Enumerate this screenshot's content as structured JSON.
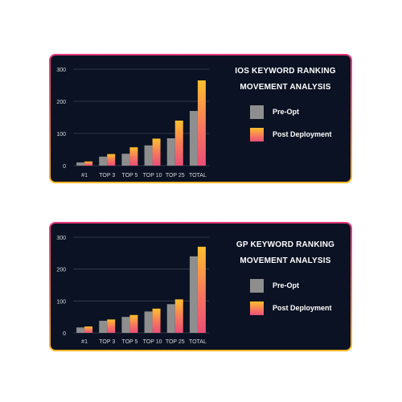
{
  "colors": {
    "card_background": "#0a1223",
    "pre_opt": "#8e8e8e",
    "post_top": "#fdbf2d",
    "post_bottom": "#ea4f77",
    "border_top": "#e8387c",
    "border_bottom": "#fdb927"
  },
  "charts": [
    {
      "title_line1": "IOS KEYWORD RANKING",
      "title_line2": "MOVEMENT ANALYSIS",
      "legend": [
        "Pre-Opt",
        "Post Deployment"
      ]
    },
    {
      "title_line1": "GP KEYWORD RANKING",
      "title_line2": "MOVEMENT ANALYSIS",
      "legend": [
        "Pre-Opt",
        "Post Deployment"
      ]
    }
  ],
  "chart_data": [
    {
      "type": "bar",
      "categories": [
        "#1",
        "TOP 3",
        "TOP 5",
        "TOP 10",
        "TOP 25",
        "TOTAL"
      ],
      "series": [
        {
          "name": "Pre-Opt",
          "values": [
            10,
            28,
            37,
            63,
            85,
            170
          ]
        },
        {
          "name": "Post Deployment",
          "values": [
            13,
            36,
            57,
            84,
            140,
            265
          ]
        }
      ],
      "yticks": [
        0,
        100,
        200,
        300
      ],
      "ylim": [
        0,
        300
      ],
      "grid": true,
      "legend_position": "right"
    },
    {
      "type": "bar",
      "categories": [
        "#1",
        "TOP 3",
        "TOP 5",
        "TOP 10",
        "TOP 25",
        "TOTAL"
      ],
      "series": [
        {
          "name": "Pre-Opt",
          "values": [
            17,
            38,
            50,
            67,
            90,
            240
          ]
        },
        {
          "name": "Post Deployment",
          "values": [
            20,
            42,
            56,
            76,
            105,
            270
          ]
        }
      ],
      "yticks": [
        0,
        100,
        200,
        300
      ],
      "ylim": [
        0,
        300
      ],
      "grid": true,
      "legend_position": "right"
    }
  ]
}
